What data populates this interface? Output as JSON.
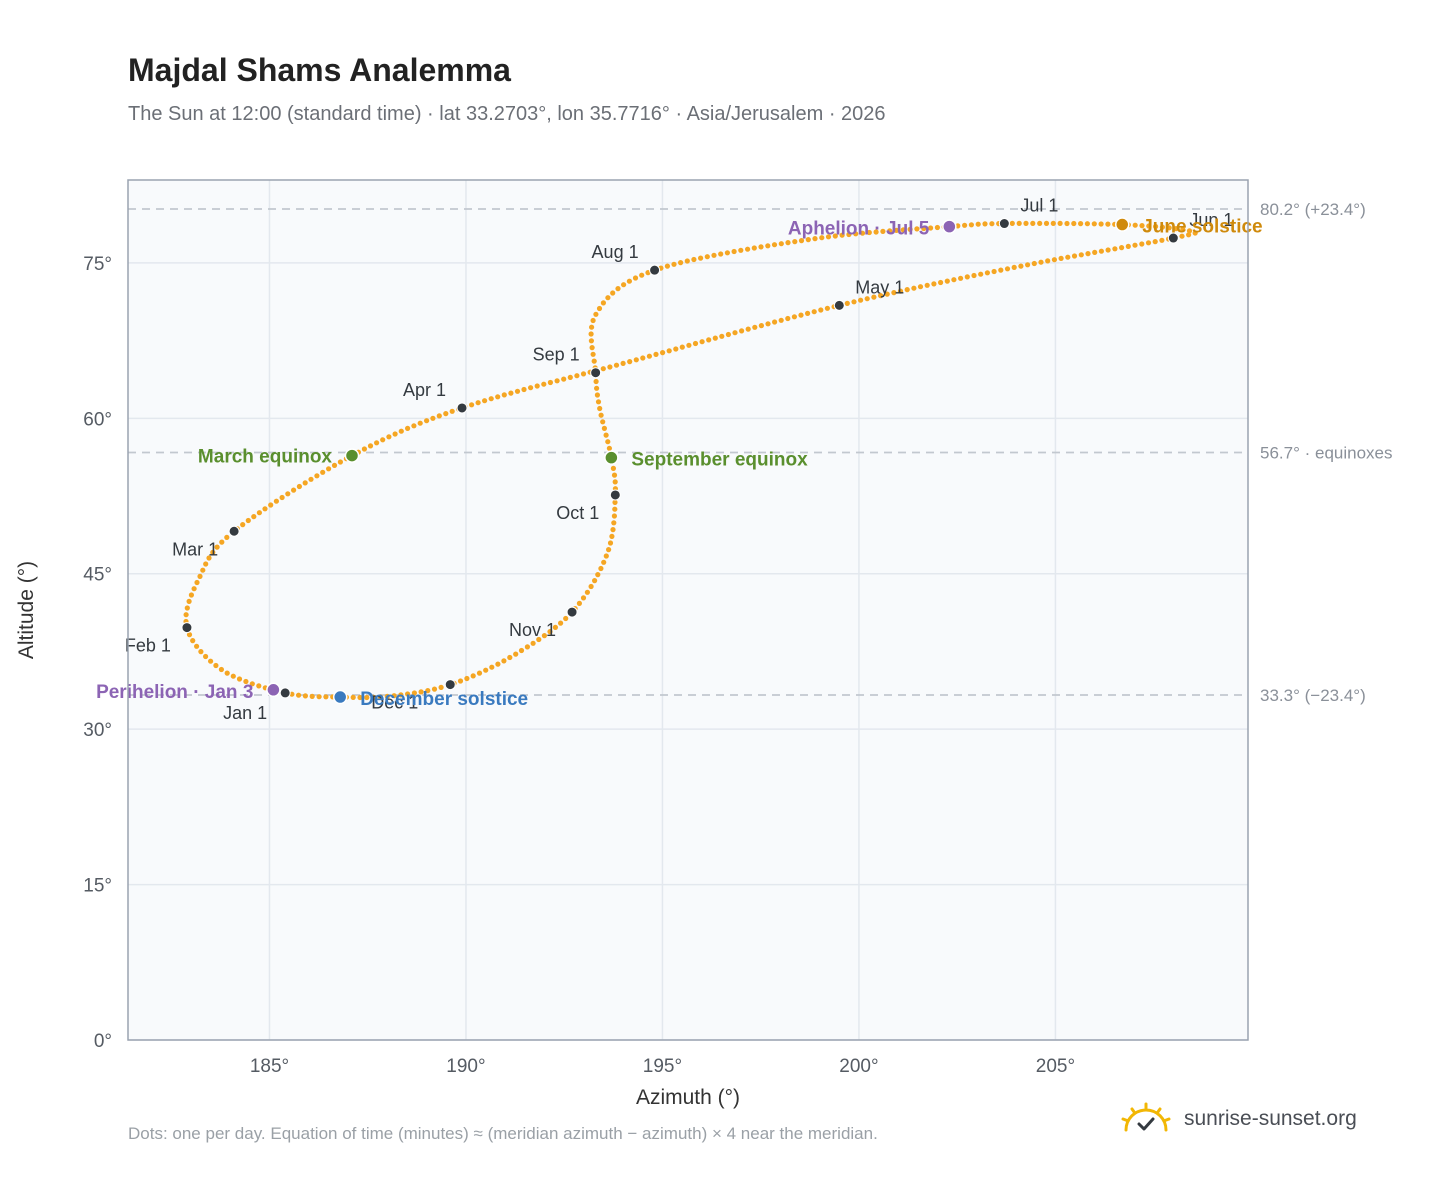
{
  "header": {
    "title": "Majdal Shams Analemma",
    "subtitle": "The Sun at 12:00 (standard time) · lat 33.2703°, lon 35.7716° · Asia/Jerusalem · 2026"
  },
  "footer": {
    "note": "Dots: one per day. Equation of time (minutes) ≈ (meridian azimuth − azimuth) × 4 near the meridian.",
    "brand": "sunrise-sunset.org",
    "brand_icon": "sun-horizon-icon"
  },
  "colors": {
    "curve": "#f5a623",
    "month_dot": "#343a40",
    "equinox": "#5a8f2e",
    "december_solstice": "#3a7abf",
    "june_solstice": "#cf8a0c",
    "perihelion_aphelion": "#8c64b4",
    "guide_line": "#c2c8cf",
    "plot_bg": "#f8fafc"
  },
  "chart_data": {
    "type": "scatter",
    "xlabel": "Azimuth (°)",
    "ylabel": "Altitude (°)",
    "xlim": [
      181.4,
      209.9
    ],
    "ylim": [
      0,
      83
    ],
    "x_ticks": [
      185,
      190,
      195,
      200,
      205
    ],
    "x_tick_labels": [
      "185°",
      "190°",
      "195°",
      "200°",
      "205°"
    ],
    "y_ticks": [
      0,
      15,
      30,
      45,
      60,
      75
    ],
    "y_tick_labels": [
      "0°",
      "15°",
      "30°",
      "45°",
      "60°",
      "75°"
    ],
    "grid": true,
    "reference_lines": [
      {
        "y": 80.2,
        "label": "80.2° (+23.4°)"
      },
      {
        "y": 56.7,
        "label": "56.7° · equinoxes"
      },
      {
        "y": 33.3,
        "label": "33.3° (−23.4°)"
      }
    ],
    "series": [
      {
        "points": [
          {
            "date": "Jan 1",
            "az": 185.4,
            "alt": 33.5
          },
          {
            "date": "Jan 15",
            "az": 183.8,
            "alt": 35.7
          },
          {
            "date": "Feb 1",
            "az": 182.9,
            "alt": 39.8
          },
          {
            "date": "Feb 15",
            "az": 183.2,
            "alt": 44.5
          },
          {
            "date": "Mar 1",
            "az": 184.1,
            "alt": 49.1
          },
          {
            "date": "Mar 20",
            "az": 187.1,
            "alt": 56.4
          },
          {
            "date": "Apr 1",
            "az": 189.9,
            "alt": 61.0
          },
          {
            "date": "Apr 15",
            "az": 194.0,
            "alt": 65.3
          },
          {
            "date": "May 1",
            "az": 199.5,
            "alt": 70.9
          },
          {
            "date": "May 15",
            "az": 204.0,
            "alt": 74.6
          },
          {
            "date": "Jun 1",
            "az": 208.0,
            "alt": 77.4
          },
          {
            "date": "Jun 10",
            "az": 208.4,
            "alt": 78.1
          },
          {
            "date": "Jun 21",
            "az": 206.7,
            "alt": 78.7
          },
          {
            "date": "Jul 1",
            "az": 203.7,
            "alt": 78.8
          },
          {
            "date": "Jul 5",
            "az": 202.3,
            "alt": 78.5
          },
          {
            "date": "Jul 15",
            "az": 198.8,
            "alt": 77.3
          },
          {
            "date": "Aug 1",
            "az": 194.8,
            "alt": 74.3
          },
          {
            "date": "Aug 15",
            "az": 193.3,
            "alt": 70.0
          },
          {
            "date": "Sep 1",
            "az": 193.3,
            "alt": 64.4
          },
          {
            "date": "Sep 10",
            "az": 193.4,
            "alt": 61.0
          },
          {
            "date": "Sep 23",
            "az": 193.7,
            "alt": 56.2
          },
          {
            "date": "Oct 1",
            "az": 193.8,
            "alt": 52.6
          },
          {
            "date": "Oct 15",
            "az": 193.6,
            "alt": 47.0
          },
          {
            "date": "Nov 1",
            "az": 192.7,
            "alt": 41.3
          },
          {
            "date": "Nov 15",
            "az": 191.2,
            "alt": 37.1
          },
          {
            "date": "Dec 1",
            "az": 189.6,
            "alt": 34.3
          },
          {
            "date": "Dec 12",
            "az": 188.1,
            "alt": 33.2
          },
          {
            "date": "Dec 21",
            "az": 186.8,
            "alt": 33.1
          },
          {
            "date": "Dec 31",
            "az": 185.4,
            "alt": 33.5
          }
        ]
      }
    ],
    "month_markers": [
      {
        "label": "Jan 1",
        "az": 185.4,
        "alt": 33.5,
        "label_anchor": "end",
        "dx": -18,
        "dy": 26
      },
      {
        "label": "Feb 1",
        "az": 182.9,
        "alt": 39.8,
        "label_anchor": "end",
        "dx": -16,
        "dy": 24
      },
      {
        "label": "Mar 1",
        "az": 184.1,
        "alt": 49.1,
        "label_anchor": "end",
        "dx": -16,
        "dy": 24
      },
      {
        "label": "Apr 1",
        "az": 189.9,
        "alt": 61.0,
        "label_anchor": "end",
        "dx": -16,
        "dy": -12
      },
      {
        "label": "May 1",
        "az": 199.5,
        "alt": 70.9,
        "label_anchor": "start",
        "dx": 16,
        "dy": -12
      },
      {
        "label": "Jun 1",
        "az": 208.0,
        "alt": 77.4,
        "label_anchor": "start",
        "dx": 16,
        "dy": -12
      },
      {
        "label": "Jul 1",
        "az": 203.7,
        "alt": 78.8,
        "label_anchor": "start",
        "dx": 16,
        "dy": -12
      },
      {
        "label": "Aug 1",
        "az": 194.8,
        "alt": 74.3,
        "label_anchor": "end",
        "dx": -16,
        "dy": -12
      },
      {
        "label": "Sep 1",
        "az": 193.3,
        "alt": 64.4,
        "label_anchor": "end",
        "dx": -16,
        "dy": -12
      },
      {
        "label": "Oct 1",
        "az": 193.8,
        "alt": 52.6,
        "label_anchor": "end",
        "dx": -16,
        "dy": 24
      },
      {
        "label": "Nov 1",
        "az": 192.7,
        "alt": 41.3,
        "label_anchor": "end",
        "dx": -16,
        "dy": 24
      },
      {
        "label": "Dec 1",
        "az": 189.6,
        "alt": 34.3,
        "label_anchor": "end",
        "dx": -32,
        "dy": 24
      }
    ],
    "special_markers": [
      {
        "label": "March equinox",
        "az": 187.1,
        "alt": 56.4,
        "color": "#5a8f2e",
        "label_anchor": "end",
        "dx": -20,
        "dy": 7
      },
      {
        "label": "September equinox",
        "az": 193.7,
        "alt": 56.2,
        "color": "#5a8f2e",
        "label_anchor": "start",
        "dx": 20,
        "dy": 8
      },
      {
        "label": "December solstice",
        "az": 186.8,
        "alt": 33.1,
        "color": "#3a7abf",
        "label_anchor": "start",
        "dx": 20,
        "dy": 8
      },
      {
        "label": "June solstice",
        "az": 206.7,
        "alt": 78.7,
        "color": "#cf8a0c",
        "label_anchor": "start",
        "dx": 20,
        "dy": 8
      },
      {
        "label": "Perihelion · Jan 3",
        "az": 185.1,
        "alt": 33.8,
        "color": "#8c64b4",
        "label_anchor": "end",
        "dx": -20,
        "dy": 8
      },
      {
        "label": "Aphelion · Jul 5",
        "az": 202.3,
        "alt": 78.5,
        "color": "#8c64b4",
        "label_anchor": "end",
        "dx": -20,
        "dy": 8
      }
    ]
  }
}
